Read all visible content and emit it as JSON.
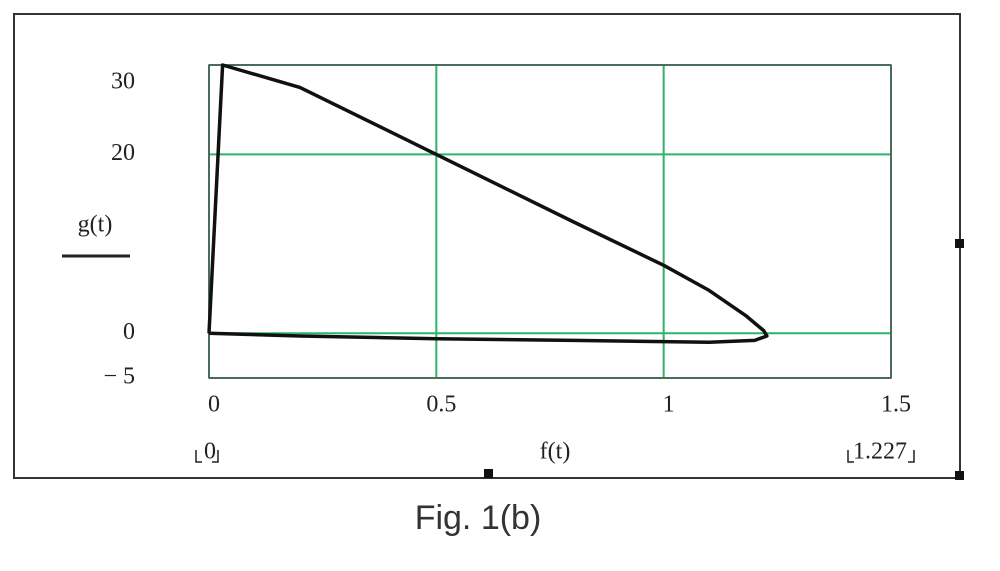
{
  "chart_data": {
    "type": "line",
    "caption": "Fig. 1(b)",
    "x_label": "f(t)",
    "y_label": "g(t)",
    "x_range_labels": [
      "0",
      "1.227"
    ],
    "x": [
      0,
      0.03,
      0.2,
      0.5,
      0.8,
      1.0,
      1.1,
      1.18,
      1.22,
      1.227,
      1.2,
      1.1,
      0.8,
      0.5,
      0.2,
      0
    ],
    "values": [
      0,
      30,
      27.5,
      20,
      12.5,
      7.6,
      4.8,
      2,
      0.3,
      -0.3,
      -0.8,
      -1,
      -0.8,
      -0.6,
      -0.3,
      0
    ],
    "color": "#111111",
    "grid_color": "#2eb36a",
    "xlim": [
      0,
      1.5
    ],
    "xticks": [
      0,
      0.5,
      1,
      1.5
    ],
    "ylim": [
      -5,
      30
    ],
    "yticks": [
      {
        "value": -5,
        "label": "− 5"
      },
      0,
      20,
      30
    ],
    "grid": true
  }
}
